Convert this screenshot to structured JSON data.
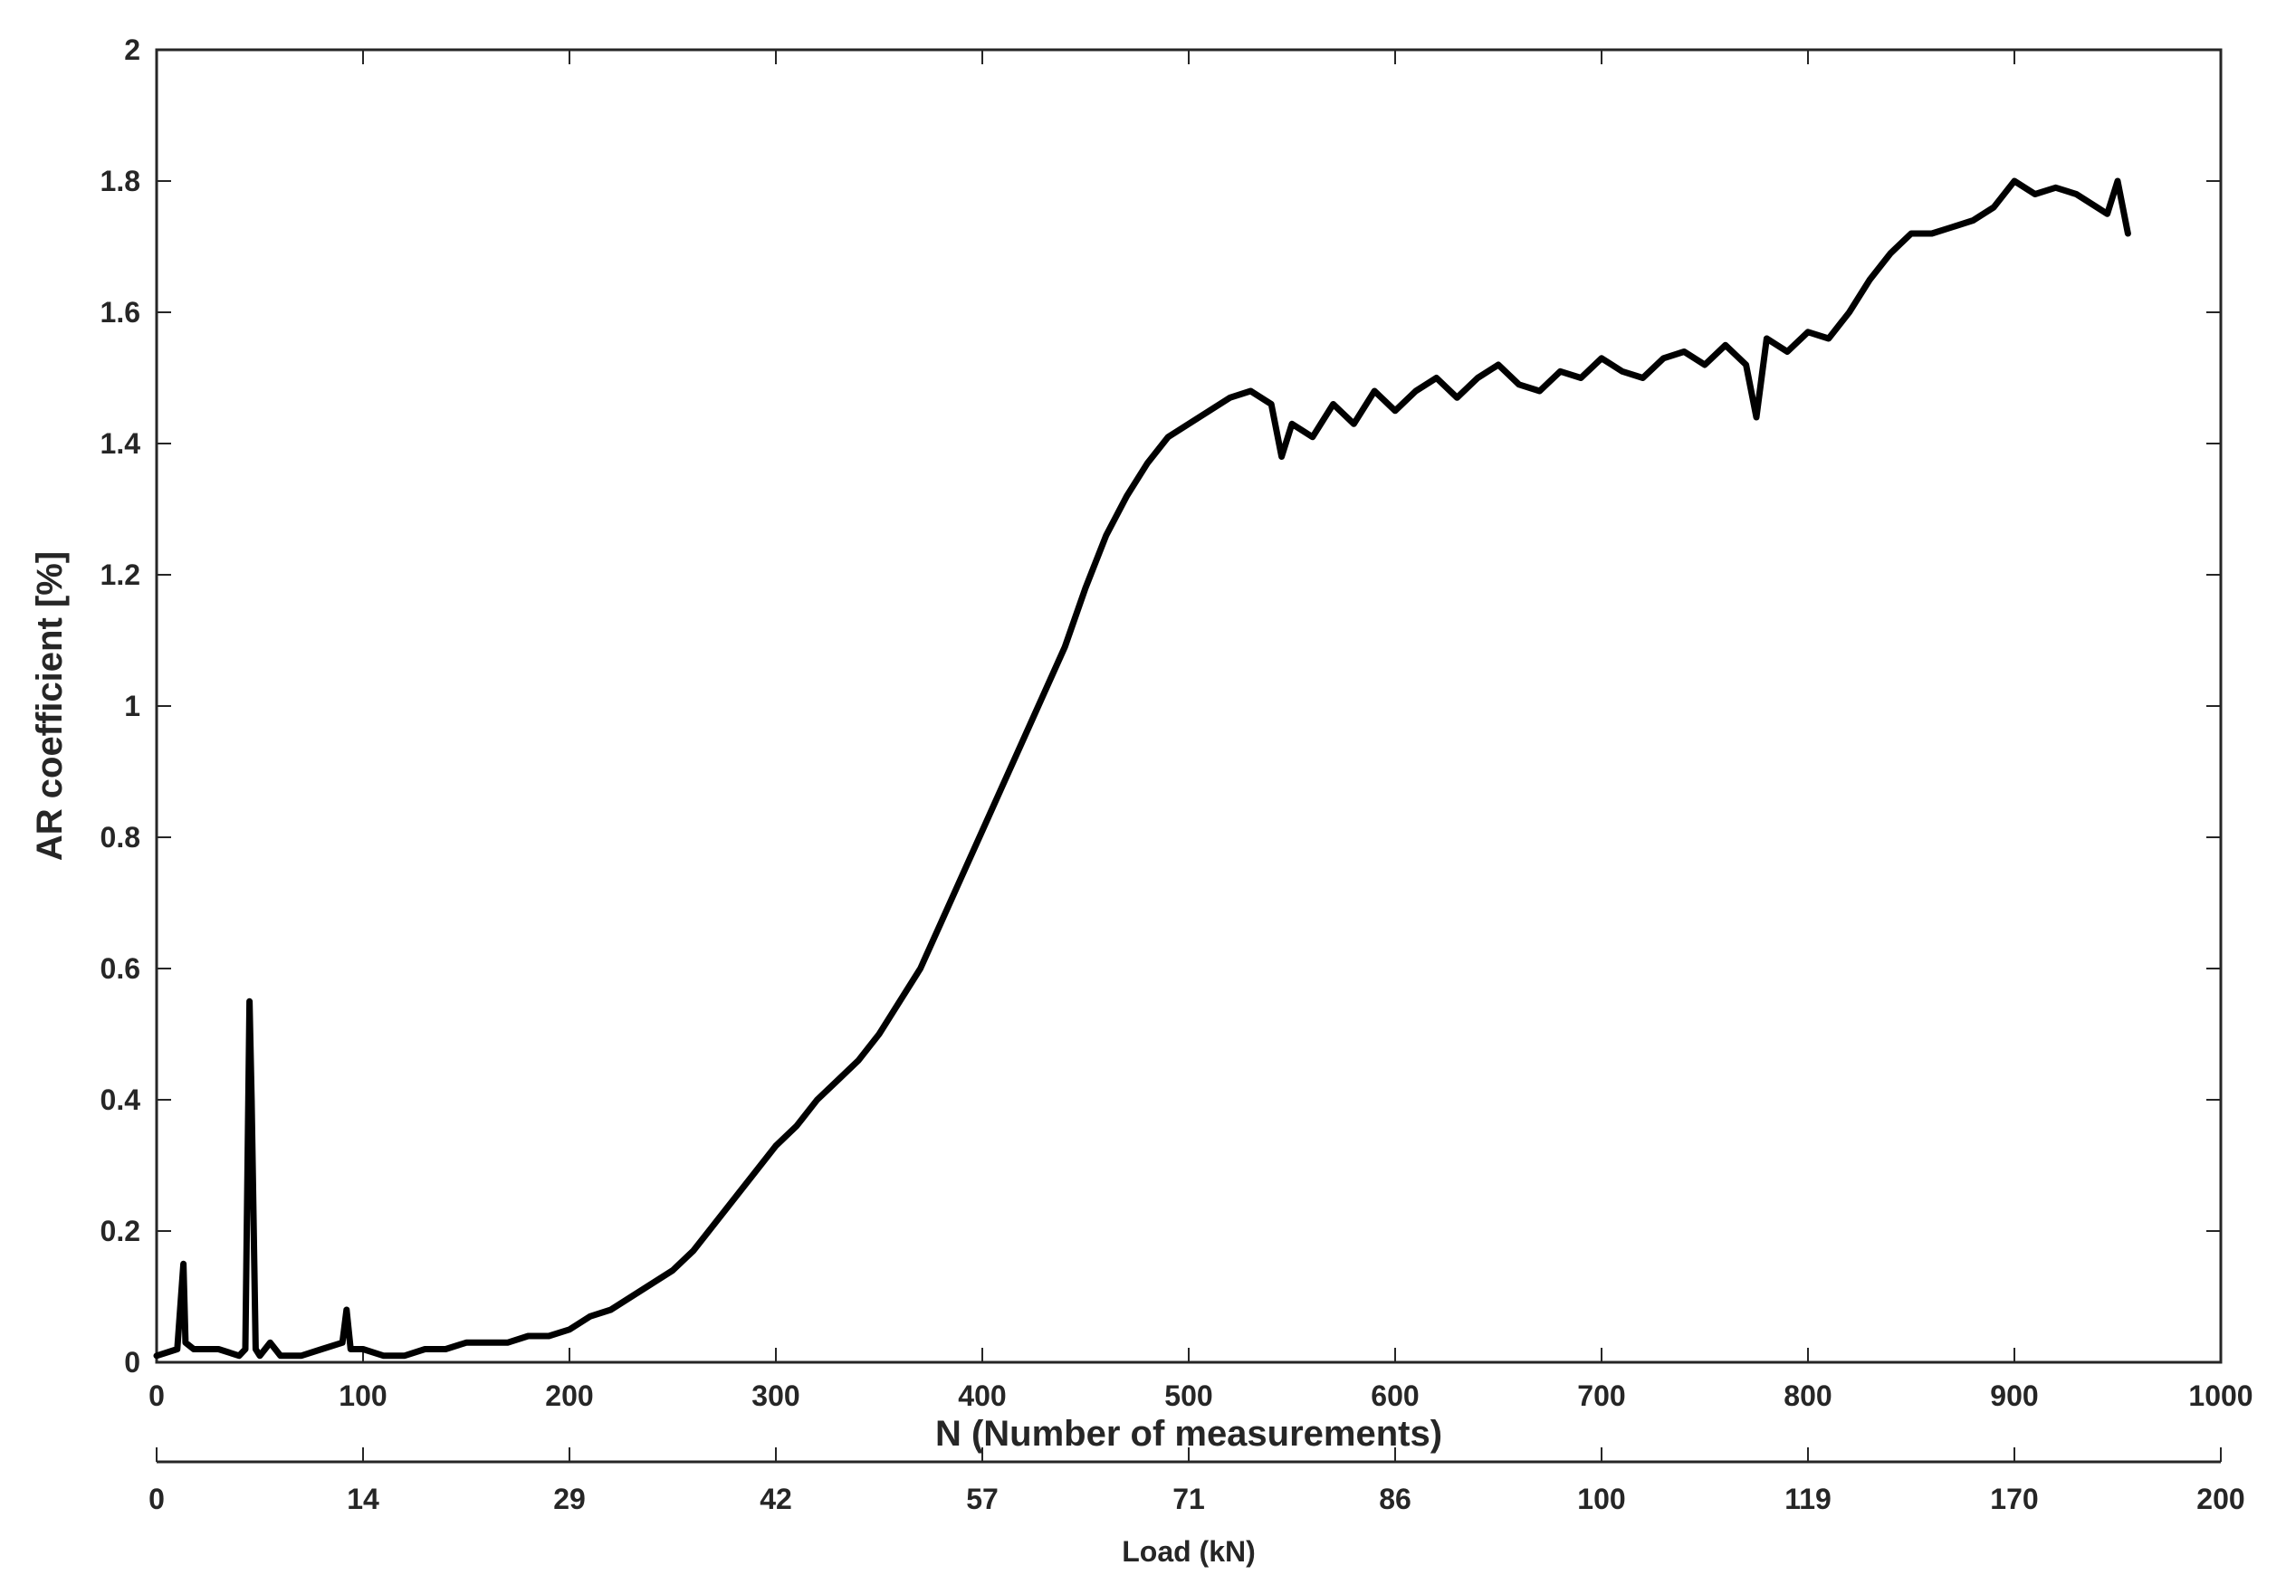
{
  "chart_data": {
    "type": "line",
    "title": "",
    "xlabel": "N (Number of measurements)",
    "ylabel": "AR coefficient [%]",
    "xlim": [
      0,
      1000
    ],
    "ylim": [
      0,
      2
    ],
    "grid": false,
    "x_ticks": [
      0,
      100,
      200,
      300,
      400,
      500,
      600,
      700,
      800,
      900,
      1000
    ],
    "y_ticks": [
      0,
      0.2,
      0.4,
      0.6,
      0.8,
      1,
      1.2,
      1.4,
      1.6,
      1.8,
      2
    ],
    "y_tick_labels": [
      "0",
      "0.2",
      "0.4",
      "0.6",
      "0.8",
      "1",
      "1.2",
      "1.4",
      "1.6",
      "1.8",
      "2"
    ],
    "secondary_x_axis": {
      "label": "Load (kN)",
      "tick_labels": [
        "0",
        "14",
        "29",
        "42",
        "57",
        "71",
        "86",
        "100",
        "119",
        "170",
        "200"
      ]
    },
    "series": [
      {
        "color": "#000000",
        "x": [
          0,
          10,
          13,
          14,
          18,
          30,
          40,
          43,
          45,
          46,
          48,
          50,
          55,
          60,
          70,
          80,
          90,
          92,
          94,
          100,
          110,
          120,
          130,
          140,
          150,
          160,
          170,
          180,
          190,
          200,
          210,
          220,
          230,
          240,
          250,
          260,
          270,
          280,
          290,
          300,
          310,
          320,
          330,
          340,
          350,
          360,
          370,
          380,
          390,
          400,
          410,
          420,
          430,
          440,
          450,
          460,
          470,
          480,
          490,
          500,
          510,
          520,
          530,
          540,
          545,
          550,
          560,
          570,
          580,
          590,
          600,
          610,
          620,
          630,
          640,
          650,
          660,
          670,
          680,
          690,
          700,
          710,
          720,
          730,
          740,
          750,
          760,
          770,
          775,
          780,
          790,
          800,
          810,
          820,
          830,
          840,
          850,
          860,
          870,
          880,
          890,
          900,
          910,
          920,
          930,
          940,
          945,
          950,
          955
        ],
        "y": [
          0.01,
          0.02,
          0.15,
          0.03,
          0.02,
          0.02,
          0.01,
          0.02,
          0.55,
          0.4,
          0.02,
          0.01,
          0.03,
          0.01,
          0.01,
          0.02,
          0.03,
          0.08,
          0.02,
          0.02,
          0.01,
          0.01,
          0.02,
          0.02,
          0.03,
          0.03,
          0.03,
          0.04,
          0.04,
          0.05,
          0.07,
          0.08,
          0.1,
          0.12,
          0.14,
          0.17,
          0.21,
          0.25,
          0.29,
          0.33,
          0.36,
          0.4,
          0.43,
          0.46,
          0.5,
          0.55,
          0.6,
          0.67,
          0.74,
          0.81,
          0.88,
          0.95,
          1.02,
          1.09,
          1.18,
          1.26,
          1.32,
          1.37,
          1.41,
          1.43,
          1.45,
          1.47,
          1.48,
          1.46,
          1.38,
          1.43,
          1.41,
          1.46,
          1.43,
          1.48,
          1.45,
          1.48,
          1.5,
          1.47,
          1.5,
          1.52,
          1.49,
          1.48,
          1.51,
          1.5,
          1.53,
          1.51,
          1.5,
          1.53,
          1.54,
          1.52,
          1.55,
          1.52,
          1.44,
          1.56,
          1.54,
          1.57,
          1.56,
          1.6,
          1.65,
          1.69,
          1.72,
          1.72,
          1.73,
          1.74,
          1.76,
          1.8,
          1.78,
          1.79,
          1.78,
          1.76,
          1.75,
          1.8,
          1.72
        ]
      }
    ]
  }
}
